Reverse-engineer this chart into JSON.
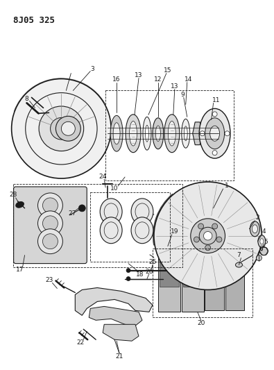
{
  "title": "8J05 325",
  "bg_color": "#ffffff",
  "fig_w": 3.95,
  "fig_h": 5.33,
  "dpi": 100,
  "title_font": 9,
  "label_font": 6.5,
  "dgray": "#1a1a1a",
  "mgray": "#888888",
  "lgray": "#cccccc",
  "vlgray": "#eeeeee"
}
